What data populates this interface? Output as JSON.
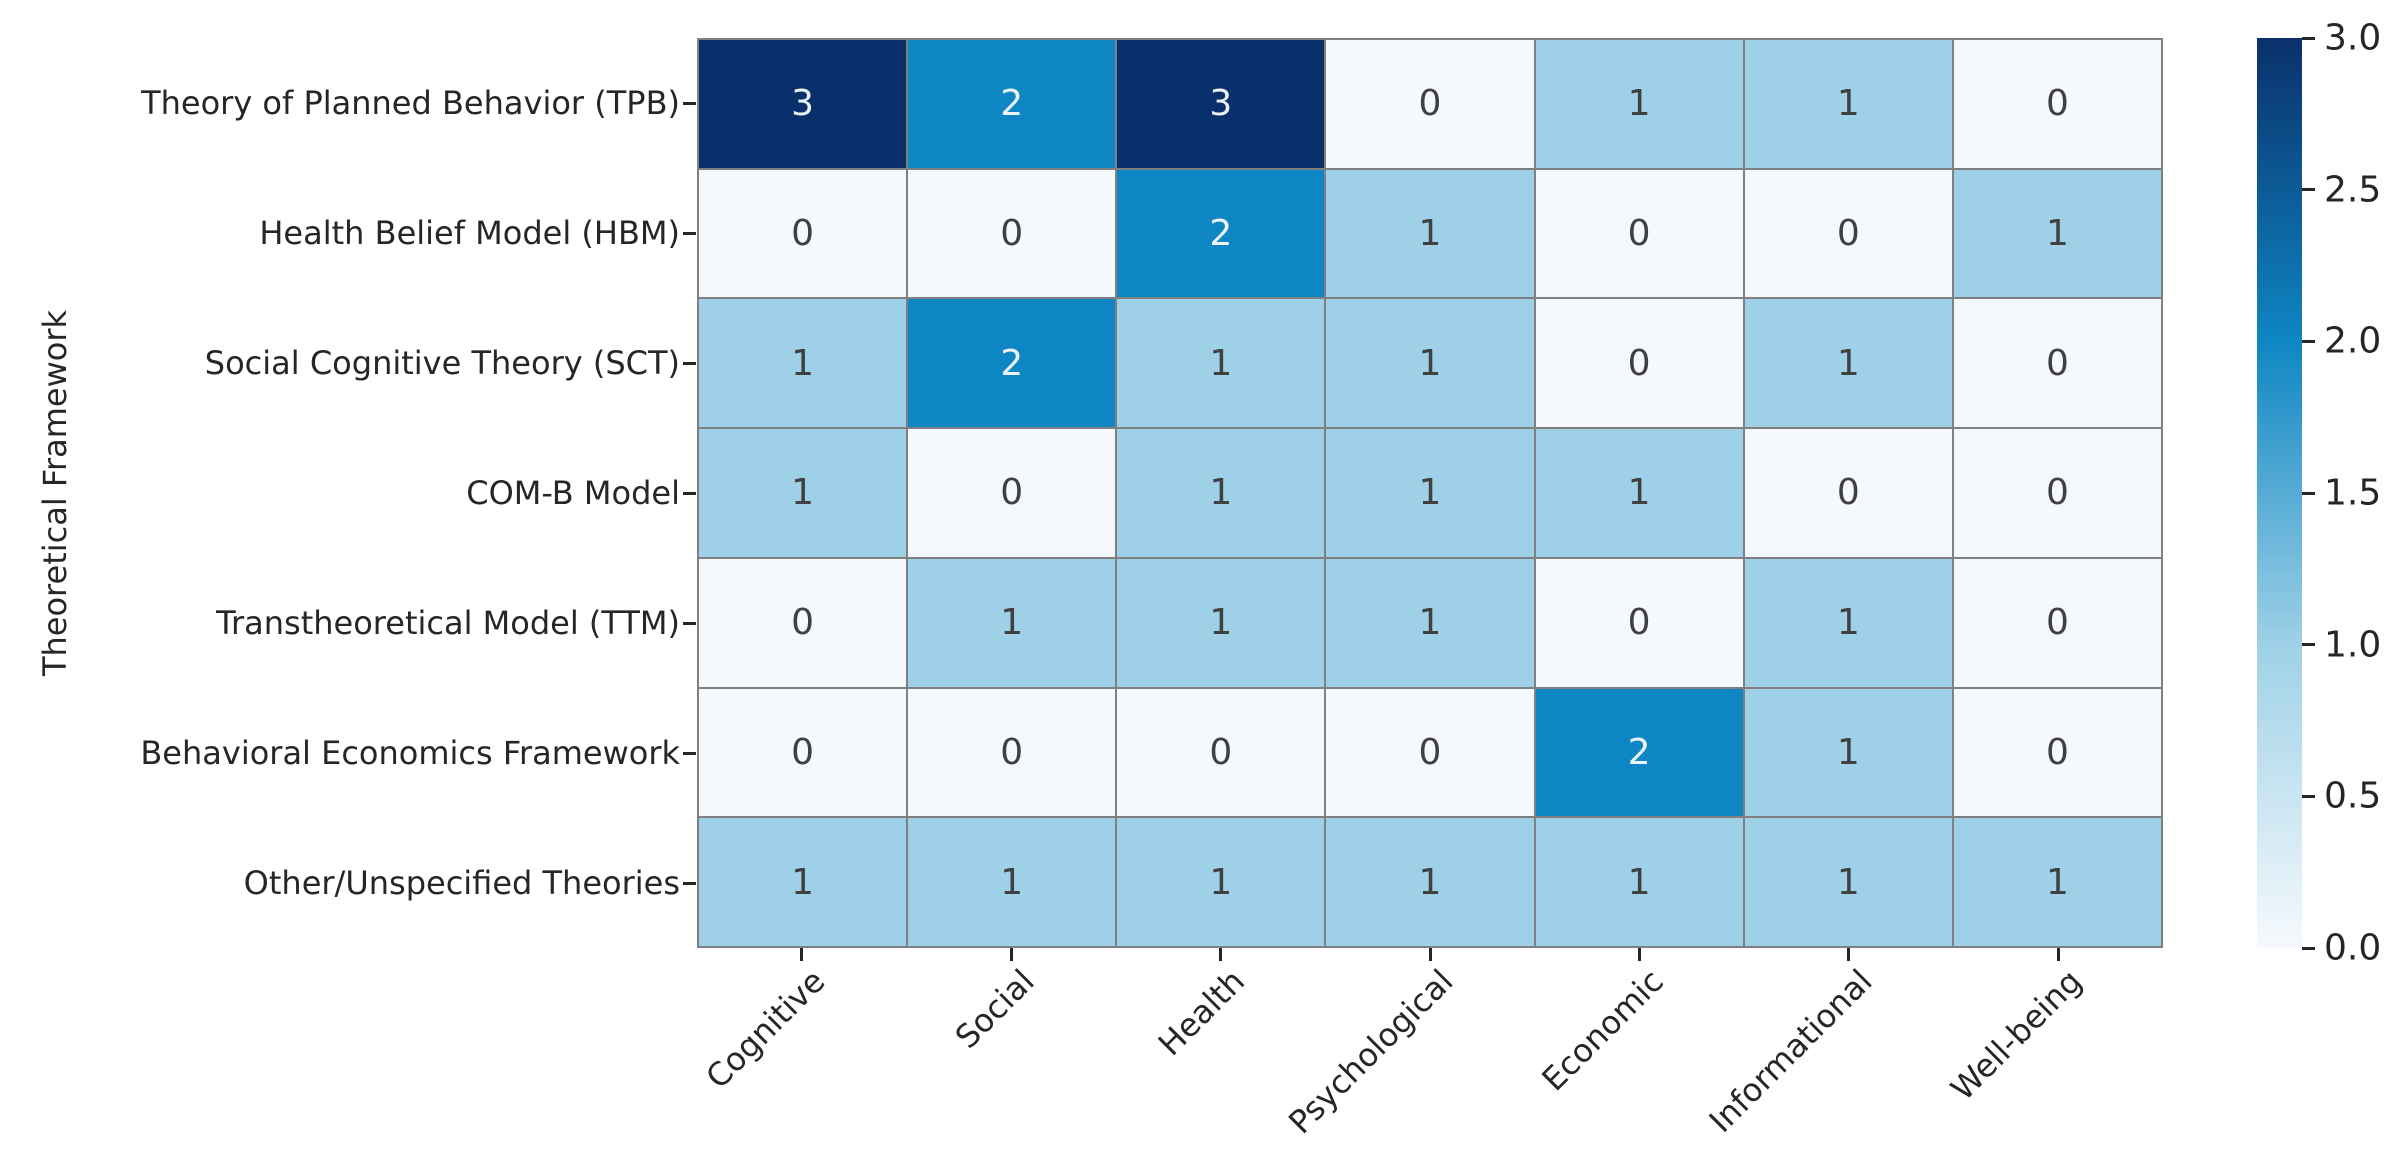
{
  "chart_data": {
    "type": "heatmap",
    "title": "",
    "xlabel": "",
    "ylabel": "Theoretical Framework",
    "rows": [
      "Theory of Planned Behavior (TPB)",
      "Health Belief Model (HBM)",
      "Social Cognitive Theory (SCT)",
      "COM-B Model",
      "Transtheoretical Model (TTM)",
      "Behavioral Economics Framework",
      "Other/Unspecified Theories"
    ],
    "columns": [
      "Cognitive",
      "Social",
      "Health",
      "Psychological",
      "Economic",
      "Informational",
      "Well-being"
    ],
    "values": [
      [
        3,
        2,
        3,
        0,
        1,
        1,
        0
      ],
      [
        0,
        0,
        2,
        1,
        0,
        0,
        1
      ],
      [
        1,
        2,
        1,
        1,
        0,
        1,
        0
      ],
      [
        1,
        0,
        1,
        1,
        1,
        0,
        0
      ],
      [
        0,
        1,
        1,
        1,
        0,
        1,
        0
      ],
      [
        0,
        0,
        0,
        0,
        2,
        1,
        0
      ],
      [
        1,
        1,
        1,
        1,
        1,
        1,
        1
      ]
    ],
    "vmin": 0,
    "vmax": 3,
    "grid": true,
    "legend_position": "right-colorbar",
    "colorbar": {
      "tick_labels_top_to_bottom": [
        "3.0",
        "2.5",
        "2.0",
        "1.5",
        "1.0",
        "0.5",
        "0.0"
      ]
    },
    "colors": {
      "colormap_name": "Blues",
      "value_fill": {
        "0": "#f5f9fd",
        "1": "#9ed1e7",
        "2": "#0e86c3",
        "3": "#0a306b"
      },
      "text_on_light": "#404040",
      "text_on_dark": "#ecf3fb",
      "grid_line": "#808080",
      "axis_text": "#262626",
      "background": "#ffffff"
    }
  }
}
